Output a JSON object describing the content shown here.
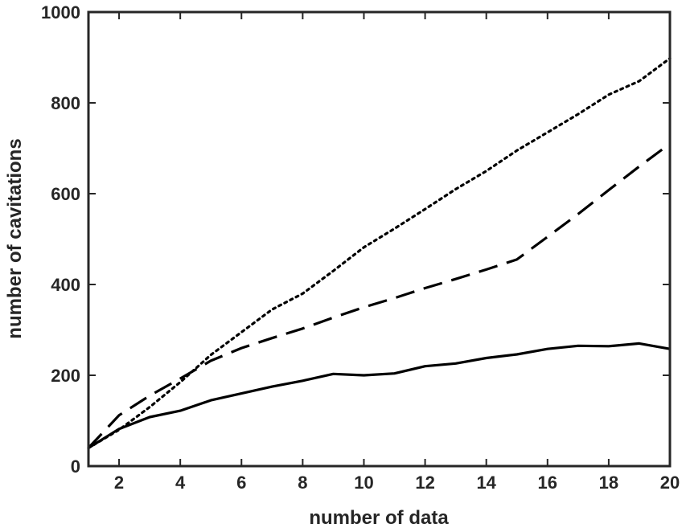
{
  "chart_data": {
    "type": "line",
    "title": "",
    "xlabel": "number of data",
    "ylabel": "number of cavitations",
    "xlim": [
      1,
      20
    ],
    "ylim": [
      0,
      1000
    ],
    "xticks": [
      2,
      4,
      6,
      8,
      10,
      12,
      14,
      16,
      18,
      20
    ],
    "yticks": [
      0,
      200,
      400,
      600,
      800,
      1000
    ],
    "grid": false,
    "legend": "none",
    "x": [
      1,
      2,
      3,
      4,
      5,
      6,
      7,
      8,
      9,
      10,
      11,
      12,
      13,
      14,
      15,
      16,
      17,
      18,
      19,
      20
    ],
    "series": [
      {
        "style": "solid",
        "color": "#000000",
        "values": [
          40,
          82,
          108,
          122,
          145,
          160,
          175,
          188,
          203,
          200,
          204,
          220,
          226,
          238,
          246,
          258,
          265,
          264,
          270,
          258
        ]
      },
      {
        "style": "dashed",
        "color": "#000000",
        "values": [
          40,
          112,
          155,
          193,
          232,
          260,
          282,
          303,
          327,
          350,
          370,
          392,
          412,
          433,
          455,
          505,
          555,
          608,
          660,
          710
        ]
      },
      {
        "style": "dotted",
        "color": "#000000",
        "values": [
          40,
          80,
          130,
          185,
          245,
          295,
          345,
          380,
          430,
          482,
          523,
          566,
          610,
          650,
          695,
          735,
          775,
          818,
          848,
          898
        ]
      }
    ]
  }
}
